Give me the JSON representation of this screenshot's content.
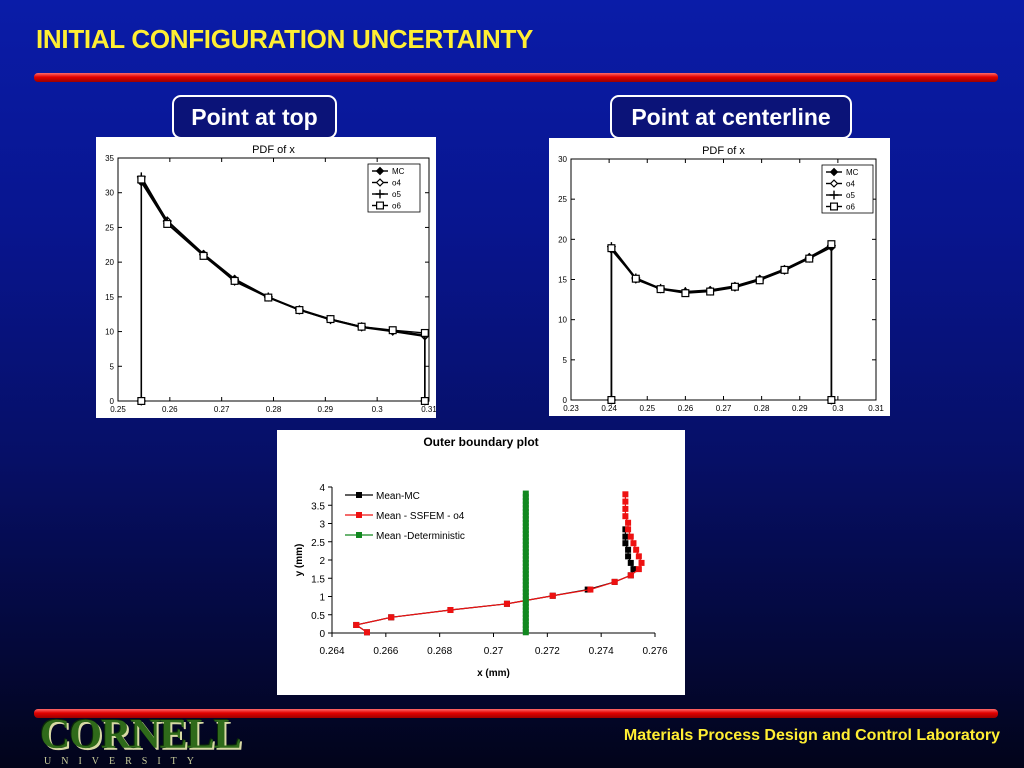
{
  "slide": {
    "title": "INITIAL CONFIGURATION UNCERTAINTY",
    "label_top": "Point at top",
    "label_center": "Point at centerline",
    "footer": "Materials Process Design and Control Laboratory",
    "logo": {
      "word": "CORNELL",
      "sub": "UNIVERSITY"
    }
  },
  "colors": {
    "title": "#ffee33",
    "rule": "#e00000",
    "background": "#0a1ca8",
    "mc": "#000000",
    "ssfem": "#ee1111",
    "deterministic": "#11881f"
  },
  "chart_data": [
    {
      "type": "line",
      "title": "PDF of x",
      "xlim": [
        0.25,
        0.31
      ],
      "ylim": [
        0,
        35
      ],
      "xticks": [
        "0.25",
        "0.26",
        "0.27",
        "0.28",
        "0.29",
        "0.3",
        "0.31"
      ],
      "yticks": [
        "0",
        "5",
        "10",
        "15",
        "20",
        "25",
        "30",
        "35"
      ],
      "legend": "top-right",
      "series": [
        {
          "name": "MC",
          "marker": "diamond-filled",
          "x": [
            0.2545,
            0.2545,
            0.2595,
            0.2665,
            0.2725,
            0.279,
            0.285,
            0.291,
            0.297,
            0.303,
            0.3092,
            0.3092
          ],
          "y": [
            0,
            31.5,
            25.6,
            21.0,
            17.2,
            14.9,
            13.1,
            11.7,
            10.6,
            10.0,
            9.3,
            0
          ]
        },
        {
          "name": "o4",
          "marker": "diamond-open",
          "x": [
            0.2545,
            0.2545,
            0.2595,
            0.2665,
            0.2725,
            0.279,
            0.285,
            0.291,
            0.297,
            0.303,
            0.3092,
            0.3092
          ],
          "y": [
            0,
            32.0,
            26.0,
            21.2,
            17.6,
            15.0,
            13.2,
            11.8,
            10.7,
            10.1,
            9.4,
            0
          ]
        },
        {
          "name": "o5",
          "marker": "plus",
          "x": [
            0.2545,
            0.2545,
            0.2595,
            0.2665,
            0.2725,
            0.279,
            0.285,
            0.291,
            0.297,
            0.303,
            0.3092,
            0.3092
          ],
          "y": [
            0,
            32.3,
            25.9,
            21.1,
            17.5,
            15.0,
            13.1,
            11.7,
            10.7,
            10.1,
            9.5,
            0
          ]
        },
        {
          "name": "o6",
          "marker": "square-open",
          "x": [
            0.2545,
            0.2545,
            0.2595,
            0.2665,
            0.2725,
            0.279,
            0.285,
            0.291,
            0.297,
            0.303,
            0.3092,
            0.3092
          ],
          "y": [
            0,
            31.9,
            25.5,
            20.9,
            17.3,
            14.9,
            13.1,
            11.8,
            10.7,
            10.2,
            9.8,
            0
          ]
        }
      ]
    },
    {
      "type": "line",
      "title": "PDF of x",
      "xlim": [
        0.23,
        0.31
      ],
      "ylim": [
        0,
        30
      ],
      "xticks": [
        "0.23",
        "0.24",
        "0.25",
        "0.26",
        "0.27",
        "0.28",
        "0.29",
        "0.3",
        "0.31"
      ],
      "yticks": [
        "0",
        "5",
        "10",
        "15",
        "20",
        "25",
        "30"
      ],
      "legend": "top-right",
      "series": [
        {
          "name": "MC",
          "marker": "diamond-filled",
          "x": [
            0.2406,
            0.2406,
            0.247,
            0.2535,
            0.26,
            0.2665,
            0.273,
            0.2795,
            0.286,
            0.2925,
            0.2983,
            0.2983
          ],
          "y": [
            0,
            18.7,
            15.1,
            13.8,
            13.4,
            13.5,
            14.0,
            14.9,
            16.1,
            17.6,
            19.0,
            0
          ]
        },
        {
          "name": "o4",
          "marker": "diamond-open",
          "x": [
            0.2406,
            0.2406,
            0.247,
            0.2535,
            0.26,
            0.2665,
            0.273,
            0.2795,
            0.286,
            0.2925,
            0.2983,
            0.2983
          ],
          "y": [
            0,
            18.9,
            15.0,
            13.8,
            13.5,
            13.7,
            14.2,
            15.1,
            16.3,
            17.8,
            19.3,
            0
          ]
        },
        {
          "name": "o5",
          "marker": "plus",
          "x": [
            0.2406,
            0.2406,
            0.247,
            0.2535,
            0.26,
            0.2665,
            0.273,
            0.2795,
            0.286,
            0.2925,
            0.2983,
            0.2983
          ],
          "y": [
            0,
            19.1,
            15.2,
            13.9,
            13.5,
            13.6,
            14.1,
            15.0,
            16.2,
            17.7,
            19.2,
            0
          ]
        },
        {
          "name": "o6",
          "marker": "square-open",
          "x": [
            0.2406,
            0.2406,
            0.247,
            0.2535,
            0.26,
            0.2665,
            0.273,
            0.2795,
            0.286,
            0.2925,
            0.2983,
            0.2983
          ],
          "y": [
            0,
            18.9,
            15.1,
            13.8,
            13.3,
            13.5,
            14.1,
            14.9,
            16.2,
            17.6,
            19.4,
            0
          ]
        }
      ]
    },
    {
      "type": "scatter",
      "title": "Outer boundary plot",
      "xlabel": "x (mm)",
      "ylabel": "y (mm)",
      "xlim": [
        0.264,
        0.276
      ],
      "ylim": [
        0,
        4
      ],
      "xticks": [
        "0.264",
        "0.266",
        "0.268",
        "0.27",
        "0.272",
        "0.274",
        "0.276"
      ],
      "yticks": [
        "0",
        "0.5",
        "1",
        "1.5",
        "2",
        "2.5",
        "3",
        "3.5",
        "4"
      ],
      "legend": "top-left",
      "series": [
        {
          "name": "Mean-MC",
          "color": "#000000",
          "x": [
            0.2653,
            0.2649,
            0.2662,
            0.2684,
            0.2705,
            0.2722,
            0.2735,
            0.2745,
            0.2751,
            0.2752,
            0.2751,
            0.275,
            0.275,
            0.2749,
            0.2749,
            0.2749
          ],
          "y": [
            0.02,
            0.22,
            0.43,
            0.63,
            0.8,
            1.02,
            1.19,
            1.4,
            1.58,
            1.75,
            1.92,
            2.1,
            2.28,
            2.46,
            2.64,
            2.84
          ]
        },
        {
          "name": "Mean - SSFEM - o4",
          "color": "#ee1111",
          "x": [
            0.2653,
            0.2649,
            0.2662,
            0.2684,
            0.2705,
            0.2722,
            0.2736,
            0.2745,
            0.2751,
            0.2754,
            0.2755,
            0.2754,
            0.2753,
            0.2752,
            0.2751,
            0.275,
            0.275,
            0.2749,
            0.2749,
            0.2749,
            0.2749
          ],
          "y": [
            0.02,
            0.22,
            0.43,
            0.63,
            0.8,
            1.02,
            1.19,
            1.4,
            1.58,
            1.75,
            1.92,
            2.1,
            2.28,
            2.46,
            2.64,
            2.84,
            3.02,
            3.2,
            3.4,
            3.6,
            3.8
          ]
        },
        {
          "name": "Mean -Deterministic",
          "color": "#11881f",
          "x": [
            0.2712,
            0.2712,
            0.2712,
            0.2712,
            0.2712,
            0.2712,
            0.2712,
            0.2712,
            0.2712,
            0.2712,
            0.2712,
            0.2712,
            0.2712,
            0.2712,
            0.2712,
            0.2712,
            0.2712,
            0.2712,
            0.2712,
            0.2712,
            0.2712,
            0.2712,
            0.2712,
            0.2712,
            0.2712,
            0.2712,
            0.2712,
            0.2712,
            0.2712,
            0.2712,
            0.2712,
            0.2712,
            0.2712,
            0.2712,
            0.2712,
            0.2712,
            0.2712,
            0.2712,
            0.2712
          ],
          "y": [
            0.02,
            0.12,
            0.22,
            0.32,
            0.42,
            0.52,
            0.62,
            0.72,
            0.82,
            0.92,
            1.02,
            1.12,
            1.22,
            1.32,
            1.42,
            1.52,
            1.62,
            1.72,
            1.82,
            1.92,
            2.02,
            2.12,
            2.22,
            2.32,
            2.42,
            2.52,
            2.62,
            2.72,
            2.82,
            2.92,
            3.02,
            3.12,
            3.22,
            3.32,
            3.42,
            3.52,
            3.62,
            3.72,
            3.82
          ]
        }
      ]
    }
  ]
}
